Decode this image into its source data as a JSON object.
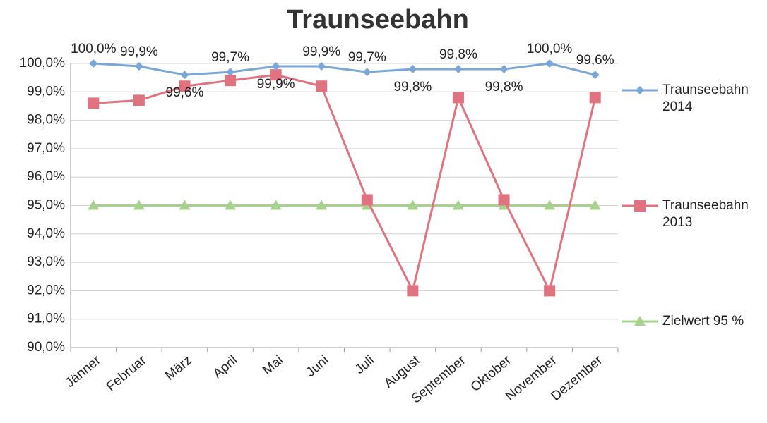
{
  "chart_data": {
    "type": "line",
    "title": "Traunseebahn",
    "categories": [
      "Jänner",
      "Februar",
      "März",
      "April",
      "Mai",
      "Juni",
      "Juli",
      "August",
      "September",
      "Oktober",
      "November",
      "Dezember"
    ],
    "series": [
      {
        "name": "Traunseebahn 2014",
        "color": "#7aa6d8",
        "marker": "diamond",
        "values": [
          100.0,
          99.9,
          99.6,
          99.7,
          99.9,
          99.9,
          99.7,
          99.8,
          99.8,
          99.8,
          100.0,
          99.6
        ],
        "value_labels": [
          "100,0%",
          "99,9%",
          "99,6%",
          "99,7%",
          "99,9%",
          "99,9%",
          "99,7%",
          "99,8%",
          "99,8%",
          "99,8%",
          "100,0%",
          "99,6%"
        ]
      },
      {
        "name": "Traunseebahn 2013",
        "color": "#e0737f",
        "marker": "square",
        "values": [
          98.6,
          98.7,
          99.2,
          99.4,
          99.6,
          99.2,
          95.2,
          92.0,
          98.8,
          95.2,
          92.0,
          98.8
        ]
      },
      {
        "name": "Zielwert 95 %",
        "color": "#a9d18e",
        "marker": "triangle",
        "values": [
          95,
          95,
          95,
          95,
          95,
          95,
          95,
          95,
          95,
          95,
          95,
          95
        ]
      }
    ],
    "ylim": [
      90,
      100
    ],
    "yticks": [
      {
        "value": 90,
        "label": "90,0%"
      },
      {
        "value": 91,
        "label": "91,0%"
      },
      {
        "value": 92,
        "label": "92,0%"
      },
      {
        "value": 93,
        "label": "93,0%"
      },
      {
        "value": 94,
        "label": "94,0%"
      },
      {
        "value": 95,
        "label": "95,0%"
      },
      {
        "value": 96,
        "label": "96,0%"
      },
      {
        "value": 97,
        "label": "97,0%"
      },
      {
        "value": 98,
        "label": "98,0%"
      },
      {
        "value": 99,
        "label": "99,0%"
      },
      {
        "value": 100,
        "label": "100,0%"
      }
    ],
    "grid": true,
    "legend": "right"
  }
}
